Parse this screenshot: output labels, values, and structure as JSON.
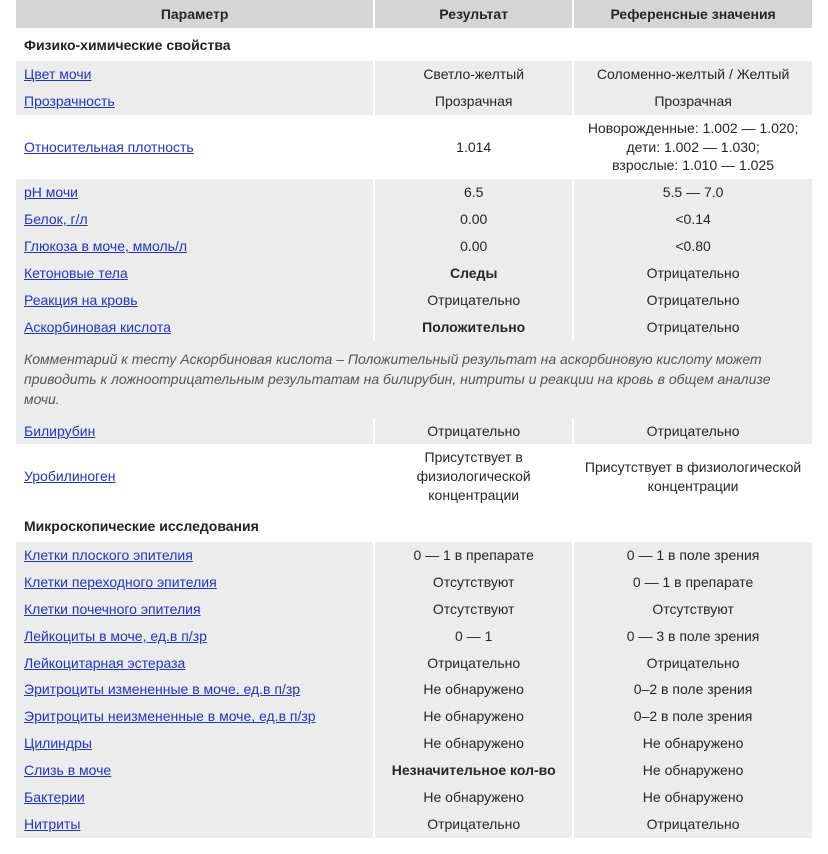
{
  "header": {
    "param": "Параметр",
    "result": "Результат",
    "ref": "Референсные значения"
  },
  "sections": {
    "physchem": "Физико-химические свойства",
    "micro": "Микроскопические исследования"
  },
  "rows": {
    "color": {
      "label": "Цвет мочи",
      "link": true,
      "result": "Светло-желтый",
      "resultBold": false,
      "ref": "Соломенно-желтый / Желтый"
    },
    "transparency": {
      "label": "Прозрачность",
      "link": true,
      "result": "Прозрачная",
      "resultBold": false,
      "ref": "Прозрачная"
    },
    "density": {
      "label": "Относительная плотность",
      "link": true,
      "result": "1.014",
      "resultBold": false,
      "ref": "Новорожденные: 1.002 — 1.020;\nдети: 1.002 — 1.030;\nвзрослые: 1.010 — 1.025"
    },
    "ph": {
      "label": "pH мочи",
      "link": true,
      "result": "6.5",
      "resultBold": false,
      "ref": "5.5 — 7.0"
    },
    "protein": {
      "label": "Белок, г/л",
      "link": true,
      "result": "0.00",
      "resultBold": false,
      "ref": "<0.14"
    },
    "glucose": {
      "label": "Глюкоза в моче, ммоль/л",
      "link": true,
      "result": "0.00",
      "resultBold": false,
      "ref": "<0.80"
    },
    "ketone": {
      "label": "Кетоновые тела",
      "link": true,
      "result": "Следы",
      "resultBold": true,
      "ref": "Отрицательно"
    },
    "blood": {
      "label": "Реакция на кровь",
      "link": true,
      "result": "Отрицательно",
      "resultBold": false,
      "ref": "Отрицательно"
    },
    "ascorbic": {
      "label": "Аскорбиновая кислота",
      "link": true,
      "result": "Положительно",
      "resultBold": true,
      "ref": "Отрицательно"
    },
    "bilirubin": {
      "label": "Билирубин",
      "link": true,
      "result": "Отрицательно",
      "resultBold": false,
      "ref": "Отрицательно"
    },
    "urobilinogen": {
      "label": "Уробилиноген",
      "link": true,
      "result": "Присутствует в физиологической концентрации",
      "resultBold": false,
      "ref": "Присутствует в физиологической концентрации"
    },
    "flatEpith": {
      "label": "Клетки плоского эпителия",
      "link": true,
      "result": "0 — 1 в препарате",
      "resultBold": false,
      "ref": "0 — 1 в поле зрения"
    },
    "transEpith": {
      "label": "Клетки переходного эпителия",
      "link": true,
      "result": "Отсутствуют",
      "resultBold": false,
      "ref": "0 — 1 в препарате"
    },
    "renalEpith": {
      "label": "Клетки почечного эпителия",
      "link": true,
      "result": "Отсутствуют",
      "resultBold": false,
      "ref": "Отсутствуют"
    },
    "leukocytes": {
      "label": "Лейкоциты в моче, ед.в п/зр",
      "link": true,
      "result": "0 — 1",
      "resultBold": false,
      "ref": "0 — 3 в поле зрения"
    },
    "leukEsterase": {
      "label": "Лейкоцитарная эстераза",
      "link": true,
      "result": "Отрицательно",
      "resultBold": false,
      "ref": "Отрицательно"
    },
    "eryChanged": {
      "label": "Эритроциты измененные в моче, ед.в п/зр",
      "link": true,
      "result": "Не обнаружено",
      "resultBold": false,
      "ref": "0–2 в поле зрения"
    },
    "eryUnchanged": {
      "label": "Эритроциты неизмененные в моче, ед.в п/зр",
      "link": true,
      "result": "Не обнаружено",
      "resultBold": false,
      "ref": "0–2 в поле зрения"
    },
    "cylinders": {
      "label": "Цилиндры",
      "link": true,
      "result": "Не обнаружено",
      "resultBold": false,
      "ref": "Не обнаружено"
    },
    "mucus": {
      "label": "Слизь в моче",
      "link": true,
      "result": "Незначительное кол-во",
      "resultBold": true,
      "ref": "Не обнаружено"
    },
    "bacteria": {
      "label": "Бактерии",
      "link": true,
      "result": "Не обнаружено",
      "resultBold": false,
      "ref": "Не обнаружено"
    },
    "nitrites": {
      "label": "Нитриты",
      "link": true,
      "result": "Отрицательно",
      "resultBold": false,
      "ref": "Отрицательно"
    }
  },
  "comment": "Комментарий к тесту Аскорбиновая кислота – Положительный результат на аскорбиновую кислоту может приводить к ложноотрицательным результатам на билирубин, нитриты и реакции на кровь в общем анализе мочи."
}
